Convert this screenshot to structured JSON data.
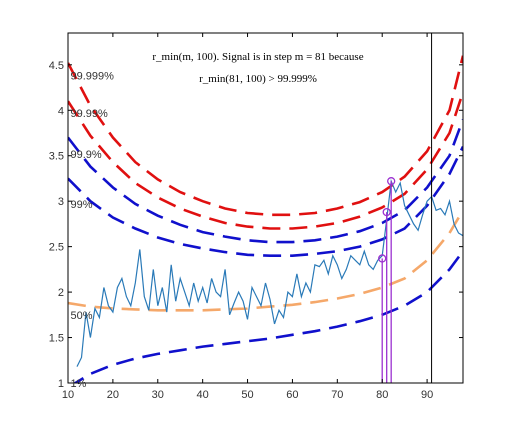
{
  "chart_data": {
    "type": "line",
    "xlim": [
      10,
      98
    ],
    "ylim": [
      1,
      4.85
    ],
    "grid": false,
    "x_ticks": [
      {
        "v": 10,
        "label": "10"
      },
      {
        "v": 20,
        "label": "20"
      },
      {
        "v": 30,
        "label": "30"
      },
      {
        "v": 40,
        "label": "40"
      },
      {
        "v": 50,
        "label": "50"
      },
      {
        "v": 60,
        "label": "60"
      },
      {
        "v": 70,
        "label": "70"
      },
      {
        "v": 80,
        "label": "80"
      },
      {
        "v": 90,
        "label": "90"
      }
    ],
    "y_ticks": [
      {
        "v": 1,
        "label": "1"
      },
      {
        "v": 1.5,
        "label": "1.5"
      },
      {
        "v": 2,
        "label": "2"
      },
      {
        "v": 2.5,
        "label": "2.5"
      },
      {
        "v": 3,
        "label": "3"
      },
      {
        "v": 3.5,
        "label": "3.5"
      },
      {
        "v": 4,
        "label": "4"
      },
      {
        "v": 4.5,
        "label": "4.5"
      }
    ],
    "annotation_line1": "r_min(m, 100). Signal is in step m = 81 because",
    "annotation_line2": "r_min(81, 100) > 99.999%",
    "percentile_curves": [
      {
        "label": "1%",
        "label_x": 11,
        "label_y": 1.0,
        "color": "#1010cc",
        "x": [
          10,
          15,
          20,
          25,
          30,
          35,
          40,
          45,
          50,
          55,
          60,
          65,
          70,
          75,
          80,
          85,
          90,
          95,
          98
        ],
        "y": [
          0.95,
          1.1,
          1.2,
          1.27,
          1.32,
          1.36,
          1.4,
          1.43,
          1.46,
          1.49,
          1.53,
          1.57,
          1.62,
          1.68,
          1.75,
          1.85,
          2.0,
          2.25,
          2.45
        ]
      },
      {
        "label": "50%",
        "label_x": 11,
        "label_y": 1.75,
        "color": "#f5a86a",
        "x": [
          10,
          15,
          20,
          25,
          30,
          35,
          40,
          45,
          50,
          55,
          60,
          65,
          70,
          75,
          80,
          85,
          90,
          95,
          98
        ],
        "y": [
          1.88,
          1.84,
          1.82,
          1.81,
          1.8,
          1.8,
          1.8,
          1.81,
          1.82,
          1.84,
          1.86,
          1.89,
          1.93,
          1.98,
          2.05,
          2.15,
          2.35,
          2.65,
          2.9
        ]
      },
      {
        "label": "99%",
        "label_x": 11,
        "label_y": 2.97,
        "color": "#1010cc",
        "x": [
          10,
          15,
          20,
          25,
          30,
          35,
          40,
          45,
          50,
          55,
          60,
          65,
          70,
          75,
          80,
          85,
          90,
          95,
          98
        ],
        "y": [
          3.25,
          3.0,
          2.82,
          2.7,
          2.6,
          2.53,
          2.48,
          2.44,
          2.41,
          2.4,
          2.4,
          2.42,
          2.45,
          2.5,
          2.58,
          2.7,
          2.95,
          3.3,
          3.6
        ]
      },
      {
        "label": "99.9%",
        "label_x": 11,
        "label_y": 3.52,
        "color": "#1010cc",
        "x": [
          10,
          15,
          20,
          25,
          30,
          35,
          40,
          45,
          50,
          55,
          60,
          65,
          70,
          75,
          80,
          85,
          90,
          95,
          98
        ],
        "y": [
          3.7,
          3.38,
          3.15,
          2.97,
          2.84,
          2.74,
          2.66,
          2.61,
          2.57,
          2.55,
          2.55,
          2.57,
          2.61,
          2.67,
          2.76,
          2.9,
          3.15,
          3.5,
          3.9
        ]
      },
      {
        "label": "99.99%",
        "label_x": 11,
        "label_y": 3.97,
        "color": "#e01010",
        "x": [
          10,
          15,
          20,
          25,
          30,
          35,
          40,
          45,
          50,
          55,
          60,
          65,
          70,
          75,
          80,
          85,
          90,
          95,
          98
        ],
        "y": [
          4.1,
          3.72,
          3.43,
          3.2,
          3.04,
          2.92,
          2.83,
          2.76,
          2.72,
          2.7,
          2.7,
          2.72,
          2.76,
          2.83,
          2.93,
          3.08,
          3.35,
          3.75,
          4.2
        ]
      },
      {
        "label": "99.999%",
        "label_x": 11,
        "label_y": 4.38,
        "color": "#e01010",
        "x": [
          10,
          15,
          20,
          25,
          30,
          35,
          40,
          45,
          50,
          55,
          60,
          65,
          70,
          75,
          80,
          85,
          90,
          95,
          98
        ],
        "y": [
          4.52,
          4.05,
          3.7,
          3.43,
          3.24,
          3.1,
          3.0,
          2.92,
          2.87,
          2.85,
          2.85,
          2.87,
          2.92,
          2.99,
          3.1,
          3.27,
          3.55,
          4.0,
          4.6
        ]
      }
    ],
    "signal": {
      "color": "#2a7ab8",
      "x": [
        12,
        13,
        14,
        15,
        16,
        17,
        18,
        19,
        20,
        21,
        22,
        23,
        24,
        25,
        26,
        27,
        28,
        29,
        30,
        31,
        32,
        33,
        34,
        35,
        36,
        37,
        38,
        39,
        40,
        41,
        42,
        43,
        44,
        45,
        46,
        47,
        48,
        49,
        50,
        51,
        52,
        53,
        54,
        55,
        56,
        57,
        58,
        59,
        60,
        61,
        62,
        63,
        64,
        65,
        66,
        67,
        68,
        69,
        70,
        71,
        72,
        73,
        74,
        75,
        76,
        77,
        78,
        79,
        80,
        81,
        82,
        83,
        84,
        85,
        86,
        87,
        88,
        89,
        90,
        91,
        92,
        93,
        94,
        95,
        96,
        97,
        98
      ],
      "y": [
        1.18,
        1.28,
        1.78,
        1.5,
        1.82,
        1.72,
        2.05,
        1.85,
        1.78,
        2.05,
        2.15,
        1.95,
        1.85,
        2.1,
        2.47,
        1.95,
        1.8,
        2.25,
        1.85,
        2.05,
        1.78,
        2.3,
        1.9,
        2.15,
        2.0,
        1.85,
        2.1,
        1.9,
        2.05,
        1.88,
        2.15,
        2.0,
        1.95,
        2.25,
        1.75,
        1.88,
        2.0,
        1.9,
        1.7,
        2.05,
        1.95,
        1.85,
        2.1,
        1.92,
        1.65,
        1.8,
        1.72,
        2.0,
        1.95,
        2.2,
        1.95,
        2.1,
        2.0,
        2.3,
        2.28,
        2.35,
        2.2,
        2.4,
        2.3,
        2.15,
        2.25,
        2.4,
        2.35,
        2.3,
        2.45,
        2.3,
        2.25,
        2.35,
        2.4,
        2.8,
        3.22,
        3.1,
        3.2,
        2.95,
        2.85,
        2.75,
        2.68,
        2.85,
        3.0,
        3.05,
        2.9,
        2.92,
        2.85,
        3.0,
        2.75,
        2.65,
        2.62
      ]
    },
    "step_markers": [
      {
        "x": 80,
        "y": 2.37
      },
      {
        "x": 81,
        "y": 2.88
      },
      {
        "x": 82,
        "y": 3.22
      }
    ],
    "vertical_line_x": 91,
    "marker_color": "#9b30d0"
  }
}
